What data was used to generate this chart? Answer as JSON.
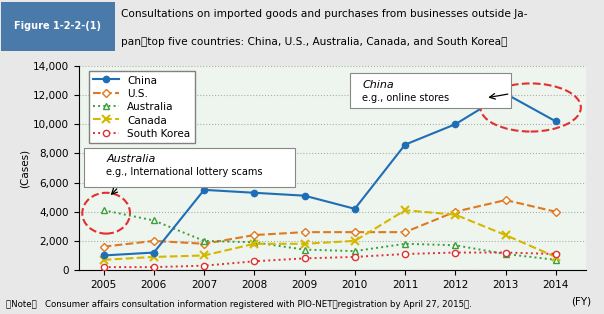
{
  "years": [
    2005,
    2006,
    2007,
    2008,
    2009,
    2010,
    2011,
    2012,
    2013,
    2014
  ],
  "china": [
    1000,
    1200,
    5500,
    5300,
    5100,
    4200,
    8600,
    10000,
    12100,
    10200
  ],
  "us": [
    1600,
    2000,
    1800,
    2400,
    2600,
    2600,
    2600,
    4000,
    4800,
    4000
  ],
  "australia": [
    4100,
    3400,
    2000,
    1900,
    1400,
    1300,
    1800,
    1700,
    1100,
    700
  ],
  "canada": [
    700,
    900,
    1000,
    1800,
    1800,
    2000,
    4100,
    3800,
    2400,
    900
  ],
  "south_korea": [
    200,
    200,
    300,
    600,
    800,
    900,
    1100,
    1200,
    1200,
    1100
  ],
  "china_color": "#1f6eb5",
  "us_color": "#e07820",
  "australia_color": "#3a9e3a",
  "canada_color": "#d4b800",
  "south_korea_color": "#e03030",
  "header_bg": "#7aaecf",
  "header_label_bg": "#4a7aaa",
  "plot_bg": "#eef4ee",
  "ylim": [
    0,
    14000
  ],
  "yticks": [
    0,
    2000,
    4000,
    6000,
    8000,
    10000,
    12000,
    14000
  ],
  "figure_label": "Figure 1-2-2-(1)",
  "title_line1": "Consultations on imported goods and purchases from businesses outside Ja-",
  "title_line2": "pan（top five countries: China, U.S., Australia, Canada, and South Korea）",
  "note": "（Note）   Consumer affairs consultation information registered with PIO-NET（registration by April 27, 2015）.",
  "ylabel": "(Cases)",
  "xlabel": "(FY)"
}
